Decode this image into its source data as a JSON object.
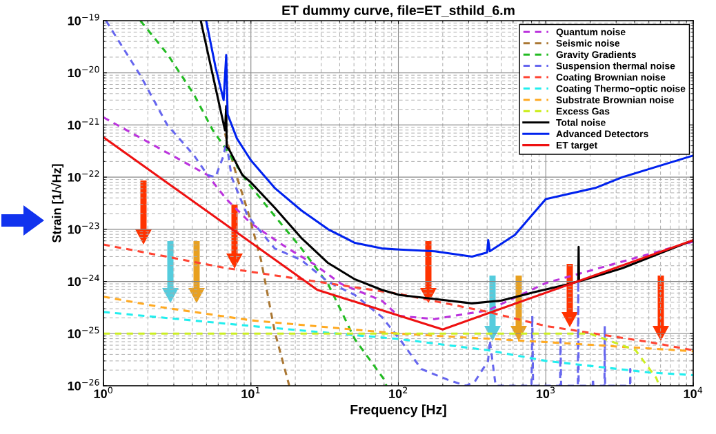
{
  "chart_data": {
    "type": "line",
    "title": "ET dummy curve, file=ET_sthild_6.m",
    "xlabel": "Frequency [Hz]",
    "ylabel": "Strain [1/√Hz]",
    "log": "xy",
    "grid": true,
    "legend": "top right",
    "xlim": [
      1,
      10000
    ],
    "ylim": [
      1e-26,
      1e-19
    ],
    "xticks": [
      {
        "value": 1,
        "label": "10$^{0}$"
      },
      {
        "value": 10,
        "label": "10$^{1}$"
      },
      {
        "value": 100,
        "label": "10$^{2}$"
      },
      {
        "value": 1000,
        "label": "10$^{3}$"
      },
      {
        "value": 10000,
        "label": "10$^{4}$"
      }
    ],
    "yticks": [
      {
        "value": 1e-26,
        "label": "10$^{−26}$"
      },
      {
        "value": 1e-25,
        "label": "10$^{−25}$"
      },
      {
        "value": 1e-24,
        "label": "10$^{−24}$"
      },
      {
        "value": 1e-23,
        "label": "10$^{−23}$"
      },
      {
        "value": 1e-22,
        "label": "10$^{−22}$"
      },
      {
        "value": 1e-21,
        "label": "10$^{−21}$"
      },
      {
        "value": 1e-20,
        "label": "10$^{−20}$"
      },
      {
        "value": 1e-19,
        "label": "10$^{−19}$"
      }
    ],
    "series": [
      {
        "name": "Quantum noise",
        "color": "#bb33dd",
        "line_style": "dashed",
        "x": [
          1,
          5.07,
          6.81,
          10,
          17.8,
          27.1,
          41.2,
          77.1,
          100,
          176,
          406,
          1000,
          10000
        ],
        "values": [
          1.4e-21,
          1.1e-22,
          3.8e-23,
          1.3e-23,
          4.3e-24,
          2.1e-24,
          8.9e-25,
          4.3e-25,
          2.2e-25,
          1.9e-25,
          2.8e-25,
          9.3e-25,
          5.8e-24
        ]
      },
      {
        "name": "Seismic noise",
        "color": "#aa7733",
        "line_style": "dashed",
        "x": [
          6.67,
          8.04,
          9.5,
          11.7,
          14.5,
          18.2
        ],
        "values": [
          6.9e-22,
          1e-22,
          2.3e-23,
          2.6e-24,
          1.1e-25,
          1e-26
        ]
      },
      {
        "name": "Gravity Gradients",
        "color": "#22bb22",
        "line_style": "dashed",
        "x": [
          1.78,
          2.71,
          4.12,
          5.52,
          6.81,
          9.5,
          14.5,
          22,
          33.4,
          50.7,
          80.4,
          83
        ],
        "values": [
          1e-19,
          2.3e-20,
          3.8e-21,
          7.9e-22,
          3.4e-22,
          7.9e-23,
          1.8e-23,
          4.3e-24,
          8.9e-25,
          7.8e-26,
          1.3e-26,
          1e-26
        ]
      },
      {
        "name": "Suspension thermal noise",
        "color": "#6666ee",
        "line_style": "dashed",
        "x": [
          1.04,
          1.78,
          2.71,
          4.12,
          5.07,
          5.75,
          6.53,
          6.81,
          7.4,
          9.5,
          14.5,
          21.9,
          33.1,
          50.7,
          77.1,
          102,
          143,
          217,
          288,
          330,
          406,
          417,
          457,
          800,
          810,
          820,
          1250,
          1259,
          1270,
          1650,
          1660,
          1670,
          2080,
          2089,
          2100,
          2500,
          2512,
          2525,
          3730,
          3741,
          3750
        ],
        "values": [
          1e-19,
          8.9e-21,
          1e-21,
          2.6e-22,
          1.1e-22,
          1e-22,
          2.6e-22,
          4.8e-22,
          1e-22,
          1.8e-23,
          4.3e-24,
          2.6e-24,
          1e-24,
          5.5e-25,
          2.1e-25,
          7.9e-26,
          2.1e-26,
          1.3e-26,
          1e-26,
          1.2e-26,
          3e-26,
          7.4e-26,
          1e-26,
          1e-26,
          2.2e-25,
          1e-26,
          1e-26,
          7.9e-26,
          1e-26,
          1e-26,
          1e-24,
          1e-26,
          1e-26,
          1.4e-26,
          1e-26,
          1e-26,
          1.4e-25,
          1e-26,
          1e-26,
          2.1e-26,
          1e-26
        ]
      },
      {
        "name": "Coating Brownian noise",
        "color": "#ff4433",
        "line_style": "dashed",
        "x": [
          1,
          6.81,
          22,
          100,
          406,
          1000,
          5012,
          10000
        ],
        "values": [
          5.1e-24,
          1.8e-24,
          1.1e-24,
          5.8e-25,
          2.6e-25,
          1.4e-25,
          6.9e-26,
          4.8e-26
        ]
      },
      {
        "name": "Coating Thermo−optic noise",
        "color": "#22eeee",
        "line_style": "dashed",
        "x": [
          1,
          10,
          100,
          406,
          1000,
          5012,
          10000
        ],
        "values": [
          2.6e-25,
          1.4e-25,
          7.9e-26,
          4.8e-26,
          3e-26,
          1.8e-26,
          1.6e-26
        ]
      },
      {
        "name": "Substrate Brownian noise",
        "color": "#ffaa22",
        "line_style": "dashed",
        "x": [
          1,
          2.49,
          10,
          100,
          1000,
          10000
        ],
        "values": [
          5.1e-25,
          3.2e-25,
          1.8e-25,
          1e-25,
          6.9e-26,
          4.6e-26
        ]
      },
      {
        "name": "Excess Gas",
        "color": "#ccee22",
        "line_style": "dashed",
        "x": [
          1,
          1995,
          4064,
          5623,
          5888
        ],
        "values": [
          1e-25,
          1e-25,
          4.8e-26,
          1.4e-26,
          1e-26
        ]
      },
      {
        "name": "Total noise",
        "color": "#000000",
        "line_style": "solid",
        "x": [
          4.57,
          5.52,
          6.67,
          6.8,
          6.85,
          7.1,
          8.75,
          10,
          14.5,
          21.9,
          33.1,
          50.7,
          77.1,
          102,
          176,
          316,
          501,
          828,
          1429,
          1660,
          1670,
          1680,
          3311,
          10000
        ],
        "values": [
          1e-19,
          8.9e-21,
          7.9e-22,
          2.3e-21,
          3.8e-22,
          3.4e-22,
          1.1e-22,
          7.9e-23,
          2.6e-23,
          6.9e-24,
          2.3e-24,
          1.1e-24,
          6.9e-25,
          5.5e-25,
          4.6e-25,
          3.8e-25,
          4.3e-25,
          6.2e-25,
          8.9e-25,
          1e-24,
          4.6e-24,
          1e-24,
          1.8e-24,
          6.2e-24
        ]
      },
      {
        "name": "Advanced Detectors",
        "color": "#0022ee",
        "line_style": "solid",
        "x": [
          4.97,
          5.75,
          6.53,
          6.8,
          6.95,
          8.04,
          10,
          14.5,
          22,
          33.4,
          50.7,
          77.1,
          102,
          176,
          316,
          400,
          407,
          417,
          617,
          1000,
          2168,
          3311,
          10000
        ],
        "values": [
          1e-19,
          1.3e-20,
          3e-21,
          2.2e-20,
          1.6e-21,
          5.5e-22,
          2.1e-22,
          6.2e-23,
          2.3e-23,
          1e-23,
          5.5e-24,
          4.3e-24,
          4.1e-24,
          3.8e-24,
          3e-24,
          3.6e-24,
          6.2e-24,
          3.8e-24,
          7.8e-24,
          3.8e-23,
          6.2e-23,
          1e-22,
          2.6e-22
        ]
      },
      {
        "name": "ET target",
        "color": "#ee1111",
        "line_style": "solid",
        "x": [
          1,
          28.2,
          200,
          10000
        ],
        "values": [
          5.8e-22,
          6.9e-25,
          1.2e-25,
          6.2e-24
        ]
      }
    ]
  }
}
